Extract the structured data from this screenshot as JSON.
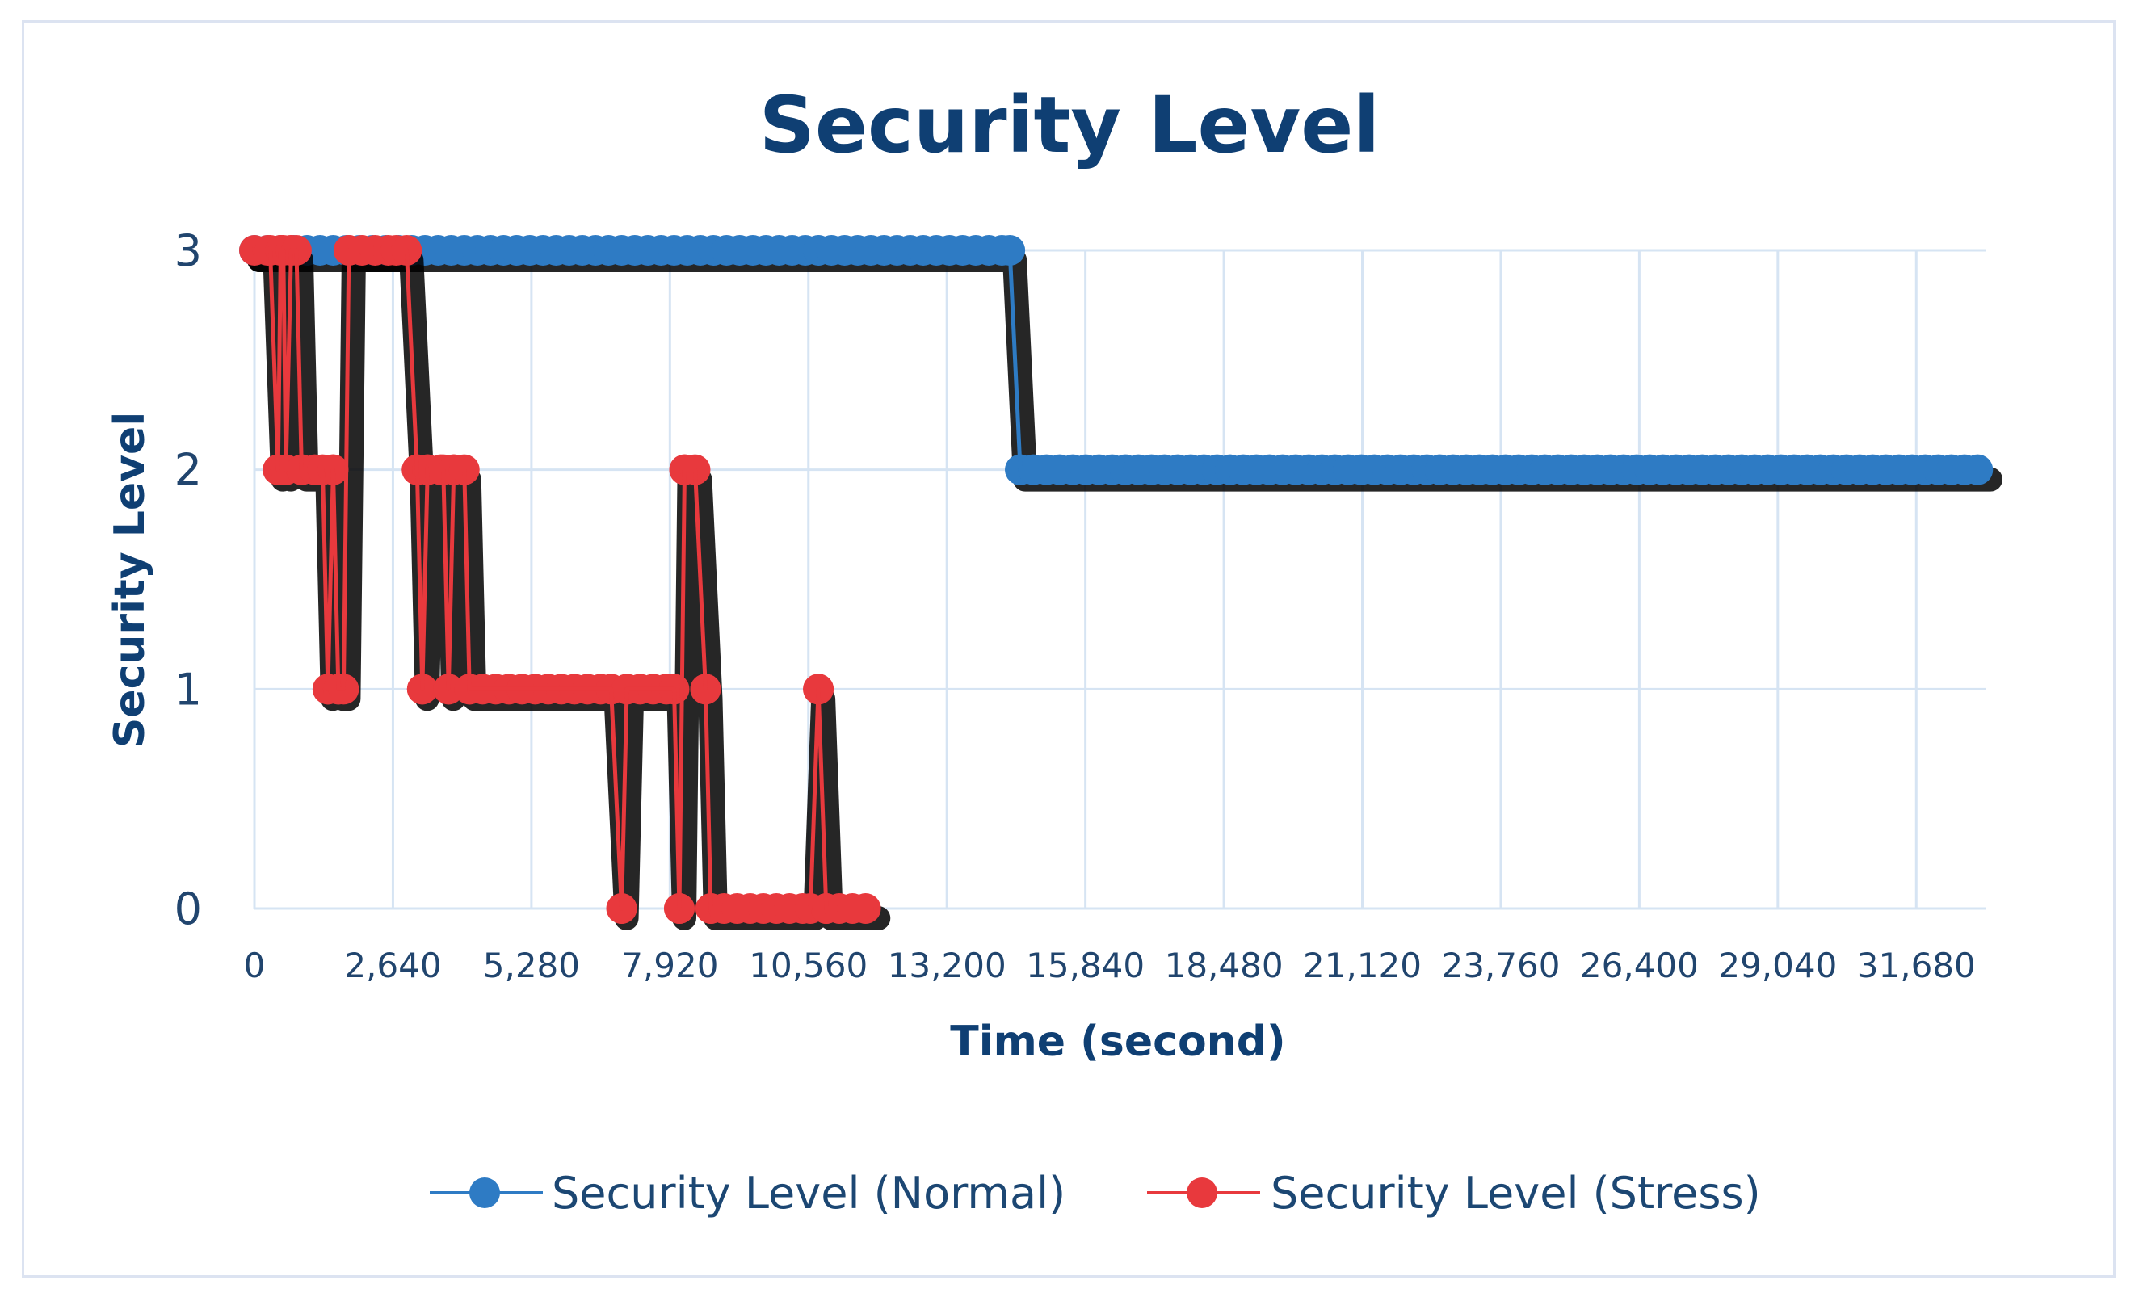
{
  "chart_data": {
    "type": "line",
    "title": "Security Level",
    "xlabel": "Time (second)",
    "ylabel": "Security Level",
    "x_ticks": [
      "0",
      "2,640",
      "5,280",
      "7,920",
      "10,560",
      "13,200",
      "15,840",
      "18,480",
      "21,120",
      "23,760",
      "26,400",
      "29,040",
      "31,680"
    ],
    "y_ticks": [
      "0",
      "1",
      "2",
      "3"
    ],
    "xlim": [
      0,
      33000
    ],
    "ylim": [
      0,
      3
    ],
    "grid": true,
    "legend_position": "bottom",
    "series": [
      {
        "name": "Security Level (Normal)",
        "color": "#2e7bc4",
        "points": [
          [
            0,
            3
          ],
          [
            14400,
            3
          ],
          [
            14600,
            2
          ],
          [
            33000,
            2
          ]
        ]
      },
      {
        "name": "Security Level (Stress)",
        "color": "#e8393d",
        "points": [
          [
            0,
            3
          ],
          [
            300,
            3
          ],
          [
            450,
            2
          ],
          [
            500,
            3
          ],
          [
            550,
            3
          ],
          [
            600,
            2
          ],
          [
            700,
            3
          ],
          [
            800,
            3
          ],
          [
            900,
            2
          ],
          [
            1300,
            2
          ],
          [
            1400,
            1
          ],
          [
            1500,
            2
          ],
          [
            1600,
            1
          ],
          [
            1700,
            1
          ],
          [
            1800,
            3
          ],
          [
            2700,
            3
          ],
          [
            2900,
            3
          ],
          [
            3100,
            2
          ],
          [
            3200,
            1
          ],
          [
            3300,
            2
          ],
          [
            3600,
            2
          ],
          [
            3700,
            1
          ],
          [
            3800,
            2
          ],
          [
            4000,
            2
          ],
          [
            4100,
            1
          ],
          [
            6800,
            1
          ],
          [
            7000,
            0
          ],
          [
            7100,
            1
          ],
          [
            8000,
            1
          ],
          [
            8100,
            0
          ],
          [
            8200,
            2
          ],
          [
            8400,
            2
          ],
          [
            8600,
            1
          ],
          [
            8700,
            0
          ],
          [
            10600,
            0
          ],
          [
            10750,
            1
          ],
          [
            10900,
            0
          ],
          [
            11800,
            0
          ]
        ]
      }
    ]
  }
}
